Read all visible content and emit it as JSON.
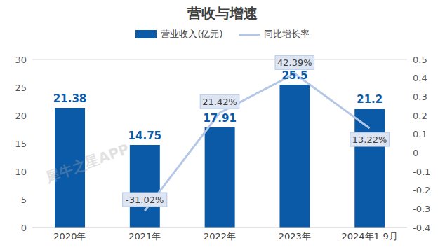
{
  "chart_data": {
    "type": "bar",
    "title": "营收与增速",
    "categories": [
      "2020年",
      "2021年",
      "2022年",
      "2023年",
      "2024年1-9月"
    ],
    "series": [
      {
        "name": "营业收入(亿元)",
        "type": "bar",
        "color": "#0b5aa8",
        "values": [
          21.38,
          14.75,
          17.91,
          25.5,
          21.2
        ]
      },
      {
        "name": "同比增长率",
        "type": "line",
        "axis": "y2",
        "color": "#b4c7e7",
        "marker": "none",
        "line_style": "solid",
        "values": [
          null,
          -0.3102,
          0.2142,
          0.4239,
          0.1322
        ],
        "value_labels": [
          null,
          "-31.02%",
          "21.42%",
          "42.39%",
          "13.22%"
        ]
      }
    ],
    "ylim": [
      0,
      30
    ],
    "yticks": [
      0,
      5,
      10,
      15,
      20,
      25,
      30
    ],
    "y2lim": [
      -0.4,
      0.5
    ],
    "y2ticks": [
      -0.4,
      -0.3,
      -0.2,
      -0.1,
      0,
      0.1,
      0.2,
      0.3,
      0.4,
      0.5
    ],
    "grid": true,
    "data_labels": true,
    "legend": "top",
    "annotations": [
      "犀牛之星APP"
    ]
  }
}
